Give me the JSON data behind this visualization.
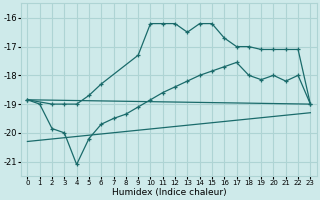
{
  "xlabel": "Humidex (Indice chaleur)",
  "ylabel": "",
  "bg_color": "#ceeaea",
  "grid_color": "#aed4d4",
  "line_color": "#1a6b6b",
  "xlim": [
    -0.5,
    23.5
  ],
  "ylim": [
    -21.5,
    -15.5
  ],
  "yticks": [
    -21,
    -20,
    -19,
    -18,
    -17,
    -16
  ],
  "xticks": [
    0,
    1,
    2,
    3,
    4,
    5,
    6,
    7,
    8,
    9,
    10,
    11,
    12,
    13,
    14,
    15,
    16,
    17,
    18,
    19,
    20,
    21,
    22,
    23
  ],
  "line1_x": [
    0,
    1,
    2,
    3,
    4,
    5,
    6,
    7,
    8,
    9,
    10,
    11,
    12,
    13,
    14,
    15,
    16,
    17,
    18,
    19,
    20,
    21,
    22,
    23
  ],
  "line1_y": [
    -18.85,
    -19.0,
    -19.85,
    -20.0,
    -21.1,
    -20.2,
    -19.7,
    -19.5,
    -19.35,
    -19.1,
    -18.85,
    -18.6,
    -18.4,
    -18.2,
    -18.0,
    -17.85,
    -17.7,
    -17.55,
    -18.0,
    -18.15,
    -18.0,
    -18.2,
    -18.0,
    -19.0
  ],
  "line2_x": [
    0,
    2,
    3,
    4,
    5,
    6,
    9,
    10,
    11,
    12,
    13,
    14,
    15,
    16,
    17,
    18,
    19,
    20,
    21,
    22,
    23
  ],
  "line2_y": [
    -18.85,
    -19.0,
    -19.0,
    -19.0,
    -18.7,
    -18.3,
    -17.3,
    -16.2,
    -16.2,
    -16.2,
    -16.5,
    -16.2,
    -16.2,
    -16.7,
    -17.0,
    -17.0,
    -17.1,
    -17.1,
    -17.1,
    -17.1,
    -19.0
  ],
  "line3_x": [
    0,
    23
  ],
  "line3_y": [
    -18.85,
    -19.0
  ],
  "line4_x": [
    0,
    23
  ],
  "line4_y": [
    -20.3,
    -19.3
  ]
}
